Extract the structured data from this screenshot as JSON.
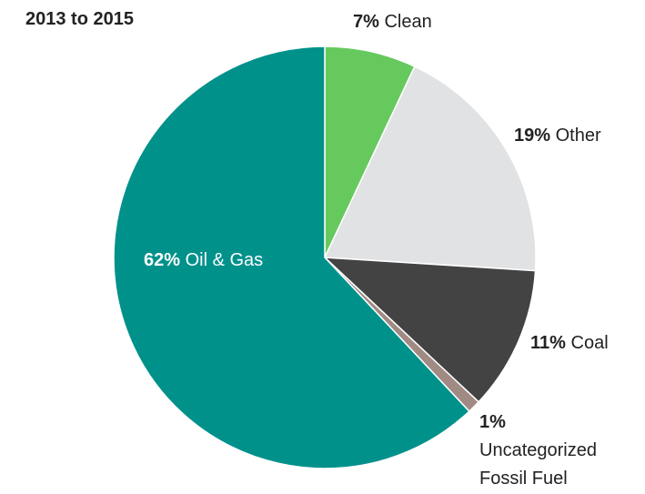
{
  "chart_data": {
    "type": "pie",
    "title": "2013 to 2015",
    "categories": [
      "Clean",
      "Other",
      "Coal",
      "Uncategorized Fossil Fuel",
      "Oil & Gas"
    ],
    "values": [
      7,
      19,
      11,
      1,
      62
    ],
    "value_labels": [
      "7%",
      "19%",
      "11%",
      "1%",
      "62%"
    ],
    "colors": [
      "#66c95e",
      "#e1e2e4",
      "#434343",
      "#a08a83",
      "#00918b"
    ]
  }
}
